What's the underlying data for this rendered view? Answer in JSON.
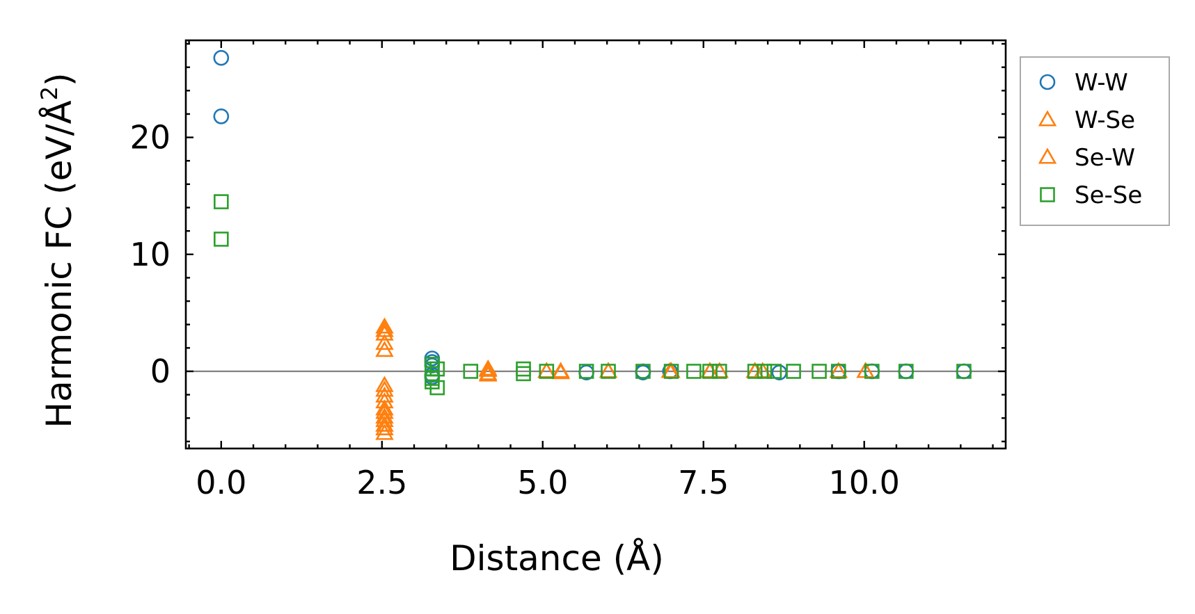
{
  "chart_data": {
    "type": "scatter",
    "xlabel": "Distance (Å)",
    "ylabel": "Harmonic FC (eV/Å²)",
    "ylabel_main": "Harmonic FC (eV/Å",
    "ylabel_sup": "2",
    "ylabel_close": ")",
    "xlim": [
      -0.55,
      12.2
    ],
    "ylim": [
      -6.6,
      28.3
    ],
    "xticks": [
      0.0,
      2.5,
      5.0,
      7.5,
      10.0
    ],
    "xtick_labels": [
      "0.0",
      "2.5",
      "5.0",
      "7.5",
      "10.0"
    ],
    "yticks": [
      0,
      10,
      20
    ],
    "ytick_labels": [
      "0",
      "10",
      "20"
    ],
    "x_minor_step": 0.5,
    "y_minor_step": 2,
    "reference_line_y": 0,
    "legend_position": "outside-right",
    "grid": false,
    "series": [
      {
        "name": "W-W",
        "marker": "circle",
        "color": "#1f77b4",
        "points": [
          [
            0.0,
            26.8
          ],
          [
            0.0,
            21.8
          ],
          [
            3.28,
            1.1
          ],
          [
            3.28,
            0.8
          ],
          [
            3.28,
            0.5
          ],
          [
            3.28,
            -0.3
          ],
          [
            3.28,
            -0.5
          ],
          [
            5.68,
            -0.1
          ],
          [
            6.56,
            0.0
          ],
          [
            6.56,
            -0.1
          ],
          [
            6.98,
            0.0
          ],
          [
            8.68,
            -0.1
          ],
          [
            9.6,
            0.0
          ],
          [
            10.12,
            0.0
          ],
          [
            10.65,
            0.0
          ],
          [
            11.55,
            0.0
          ]
        ]
      },
      {
        "name": "W-Se",
        "marker": "triangle",
        "color": "#ff7f0e",
        "points": [
          [
            2.54,
            3.8
          ],
          [
            2.54,
            3.2
          ],
          [
            2.54,
            1.8
          ],
          [
            2.54,
            -1.2
          ],
          [
            2.54,
            -2.1
          ],
          [
            2.54,
            -3.2
          ],
          [
            2.54,
            -3.9
          ],
          [
            2.54,
            -4.6
          ],
          [
            2.54,
            -5.3
          ],
          [
            4.15,
            0.2
          ],
          [
            4.15,
            -0.2
          ],
          [
            5.06,
            0.0
          ],
          [
            5.28,
            0.0
          ],
          [
            6.02,
            0.0
          ],
          [
            6.98,
            0.0
          ],
          [
            7.6,
            0.0
          ],
          [
            7.75,
            0.0
          ],
          [
            8.3,
            0.0
          ],
          [
            8.42,
            0.0
          ],
          [
            9.6,
            0.0
          ],
          [
            10.02,
            0.0
          ]
        ]
      },
      {
        "name": "Se-W",
        "marker": "triangle",
        "color": "#ff7f0e",
        "points": [
          [
            2.54,
            3.5
          ],
          [
            2.54,
            2.4
          ],
          [
            2.54,
            -1.6
          ],
          [
            2.54,
            -2.6
          ],
          [
            2.54,
            -3.5
          ],
          [
            2.54,
            -4.2
          ],
          [
            2.54,
            -4.9
          ],
          [
            4.15,
            0.1
          ],
          [
            4.15,
            -0.3
          ],
          [
            5.06,
            0.0
          ],
          [
            5.28,
            -0.1
          ],
          [
            6.02,
            0.0
          ],
          [
            7.0,
            0.0
          ],
          [
            7.6,
            0.0
          ],
          [
            8.3,
            0.0
          ],
          [
            9.6,
            0.0
          ],
          [
            10.02,
            0.0
          ]
        ]
      },
      {
        "name": "Se-Se",
        "marker": "square",
        "color": "#2ca02c",
        "points": [
          [
            0.0,
            14.5
          ],
          [
            0.0,
            11.3
          ],
          [
            3.28,
            0.6
          ],
          [
            3.28,
            0.2
          ],
          [
            3.28,
            -0.2
          ],
          [
            3.28,
            -0.6
          ],
          [
            3.28,
            -0.9
          ],
          [
            3.36,
            0.2
          ],
          [
            3.36,
            -1.4
          ],
          [
            3.88,
            0.0
          ],
          [
            4.7,
            0.2
          ],
          [
            4.7,
            -0.2
          ],
          [
            5.06,
            0.0
          ],
          [
            5.68,
            0.0
          ],
          [
            6.02,
            0.0
          ],
          [
            6.56,
            0.0
          ],
          [
            7.0,
            0.0
          ],
          [
            7.35,
            0.0
          ],
          [
            7.6,
            0.0
          ],
          [
            7.75,
            0.0
          ],
          [
            8.3,
            0.0
          ],
          [
            8.45,
            0.0
          ],
          [
            8.6,
            0.0
          ],
          [
            8.9,
            0.0
          ],
          [
            9.3,
            0.0
          ],
          [
            9.6,
            0.0
          ],
          [
            10.12,
            0.0
          ],
          [
            10.65,
            0.0
          ],
          [
            11.55,
            0.0
          ]
        ]
      }
    ]
  }
}
